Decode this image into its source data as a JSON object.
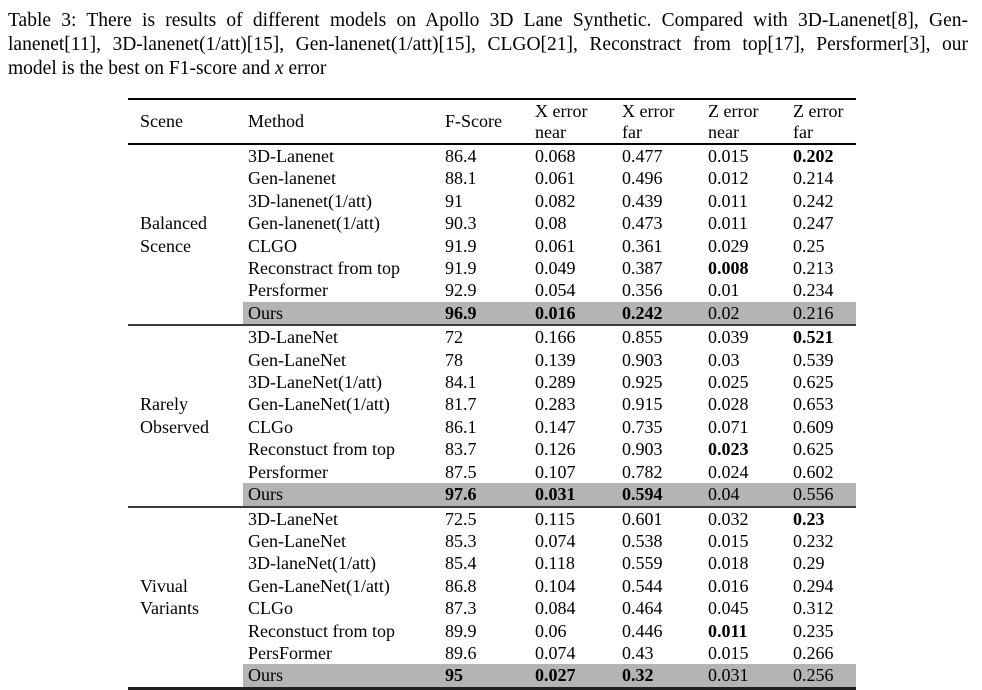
{
  "caption": {
    "line1": "Table 3: There is results of different models on Apollo 3D Lane Synthetic. Compared with 3D-Lanenet[8], Gen-",
    "line2": "lanenet[11], 3D-lanenet(1/att)[15], Gen-lanenet(1/att)[15], CLGO[21], Reconstract from top[17], Persformer[3], our",
    "line3_pre": "model is the best on F1-score and ",
    "line3_math": "x",
    "line3_post": " error"
  },
  "header": {
    "scene": "Scene",
    "method": "Method",
    "fscore": "F-Score",
    "errcols": [
      {
        "l1": "X error",
        "l2": "near"
      },
      {
        "l1": "X error",
        "l2": "far"
      },
      {
        "l1": "Z error",
        "l2": "near"
      },
      {
        "l1": "Z error",
        "l2": "far"
      }
    ]
  },
  "colors": {
    "highlight_gray": "#b4b4b4",
    "text": "#000000"
  },
  "sections": [
    {
      "scene": [
        "Balanced",
        "Scence"
      ],
      "rows": [
        {
          "method": "3D-Lanenet",
          "f": "86.4",
          "xn": "0.068",
          "xf": "0.477",
          "zn": "0.015",
          "zf": "0.202",
          "bold": [
            "zf"
          ],
          "highlight": false
        },
        {
          "method": "Gen-lanenet",
          "f": "88.1",
          "xn": "0.061",
          "xf": "0.496",
          "zn": "0.012",
          "zf": "0.214",
          "bold": [],
          "highlight": false
        },
        {
          "method": "3D-lanenet(1/att)",
          "f": "91",
          "xn": "0.082",
          "xf": "0.439",
          "zn": "0.011",
          "zf": "0.242",
          "bold": [],
          "highlight": false
        },
        {
          "method": "Gen-lanenet(1/att)",
          "f": "90.3",
          "xn": "0.08",
          "xf": "0.473",
          "zn": "0.011",
          "zf": "0.247",
          "bold": [],
          "highlight": false
        },
        {
          "method": "CLGO",
          "f": "91.9",
          "xn": "0.061",
          "xf": "0.361",
          "zn": "0.029",
          "zf": "0.25",
          "bold": [],
          "highlight": false
        },
        {
          "method": "Reconstract from top",
          "f": "91.9",
          "xn": "0.049",
          "xf": "0.387",
          "zn": "0.008",
          "zf": "0.213",
          "bold": [
            "zn"
          ],
          "highlight": false
        },
        {
          "method": "Persformer",
          "f": "92.9",
          "xn": "0.054",
          "xf": "0.356",
          "zn": "0.01",
          "zf": "0.234",
          "bold": [],
          "highlight": false
        },
        {
          "method": "Ours",
          "f": "96.9",
          "xn": "0.016",
          "xf": "0.242",
          "zn": "0.02",
          "zf": "0.216",
          "bold": [
            "f",
            "xn",
            "xf"
          ],
          "highlight": true
        }
      ]
    },
    {
      "scene": [
        "Rarely",
        "Observed"
      ],
      "rows": [
        {
          "method": "3D-LaneNet",
          "f": "72",
          "xn": "0.166",
          "xf": "0.855",
          "zn": "0.039",
          "zf": "0.521",
          "bold": [
            "zf"
          ],
          "highlight": false
        },
        {
          "method": "Gen-LaneNet",
          "f": "78",
          "xn": "0.139",
          "xf": "0.903",
          "zn": "0.03",
          "zf": "0.539",
          "bold": [],
          "highlight": false
        },
        {
          "method": "3D-LaneNet(1/att)",
          "f": "84.1",
          "xn": "0.289",
          "xf": "0.925",
          "zn": "0.025",
          "zf": "0.625",
          "bold": [],
          "highlight": false
        },
        {
          "method": "Gen-LaneNet(1/att)",
          "f": "81.7",
          "xn": "0.283",
          "xf": "0.915",
          "zn": "0.028",
          "zf": "0.653",
          "bold": [],
          "highlight": false
        },
        {
          "method": "CLGo",
          "f": "86.1",
          "xn": "0.147",
          "xf": "0.735",
          "zn": "0.071",
          "zf": "0.609",
          "bold": [],
          "highlight": false
        },
        {
          "method": "Reconstuct from top",
          "f": "83.7",
          "xn": "0.126",
          "xf": "0.903",
          "zn": "0.023",
          "zf": "0.625",
          "bold": [
            "zn"
          ],
          "highlight": false
        },
        {
          "method": "Persformer",
          "f": "87.5",
          "xn": "0.107",
          "xf": "0.782",
          "zn": "0.024",
          "zf": "0.602",
          "bold": [],
          "highlight": false
        },
        {
          "method": "Ours",
          "f": "97.6",
          "xn": "0.031",
          "xf": "0.594",
          "zn": "0.04",
          "zf": "0.556",
          "bold": [
            "f",
            "xn",
            "xf"
          ],
          "highlight": true
        }
      ]
    },
    {
      "scene": [
        "Vivual",
        "Variants"
      ],
      "rows": [
        {
          "method": "3D-LaneNet",
          "f": "72.5",
          "xn": "0.115",
          "xf": "0.601",
          "zn": "0.032",
          "zf": "0.23",
          "bold": [
            "zf"
          ],
          "highlight": false
        },
        {
          "method": "Gen-LaneNet",
          "f": "85.3",
          "xn": "0.074",
          "xf": "0.538",
          "zn": "0.015",
          "zf": "0.232",
          "bold": [],
          "highlight": false
        },
        {
          "method": "3D-laneNet(1/att)",
          "f": "85.4",
          "xn": "0.118",
          "xf": "0.559",
          "zn": "0.018",
          "zf": "0.29",
          "bold": [],
          "highlight": false
        },
        {
          "method": "Gen-LaneNet(1/att)",
          "f": "86.8",
          "xn": "0.104",
          "xf": "0.544",
          "zn": "0.016",
          "zf": "0.294",
          "bold": [],
          "highlight": false
        },
        {
          "method": "CLGo",
          "f": "87.3",
          "xn": "0.084",
          "xf": "0.464",
          "zn": "0.045",
          "zf": "0.312",
          "bold": [],
          "highlight": false
        },
        {
          "method": "Reconstuct from top",
          "f": "89.9",
          "xn": "0.06",
          "xf": "0.446",
          "zn": "0.011",
          "zf": "0.235",
          "bold": [
            "zn"
          ],
          "highlight": false
        },
        {
          "method": "PersFormer",
          "f": "89.6",
          "xn": "0.074",
          "xf": "0.43",
          "zn": "0.015",
          "zf": "0.266",
          "bold": [],
          "highlight": false
        },
        {
          "method": "Ours",
          "f": "95",
          "xn": "0.027",
          "xf": "0.32",
          "zn": "0.031",
          "zf": "0.256",
          "bold": [
            "f",
            "xn",
            "xf"
          ],
          "highlight": true
        }
      ]
    }
  ]
}
